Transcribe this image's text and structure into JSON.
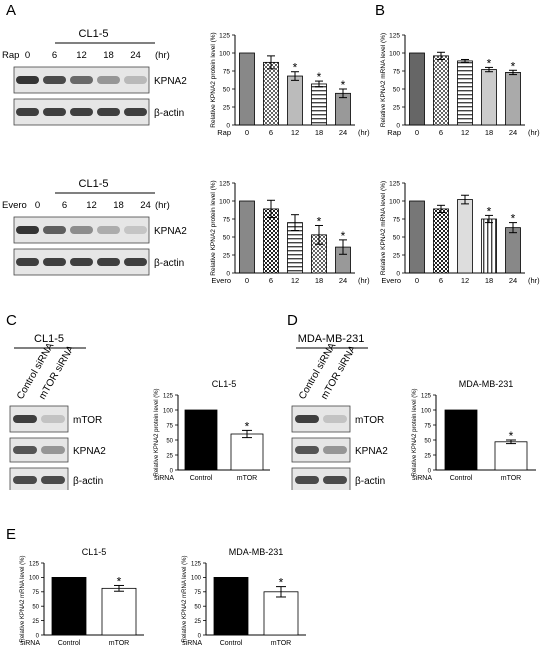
{
  "panels": {
    "A": "A",
    "B": "B",
    "C": "C",
    "D": "D",
    "E": "E"
  },
  "blots": [
    {
      "id": "blotA1",
      "cell": "CL1-5",
      "drug": "Rap",
      "times": [
        "0",
        "6",
        "12",
        "18",
        "24"
      ],
      "unit": "(hr)",
      "labels": [
        "KPNA2",
        "β-actin"
      ],
      "kpna2": [
        0.95,
        0.85,
        0.7,
        0.45,
        0.2
      ]
    },
    {
      "id": "blotA2",
      "cell": "CL1-5",
      "drug": "Evero",
      "times": [
        "0",
        "6",
        "12",
        "18",
        "24"
      ],
      "unit": "(hr)",
      "labels": [
        "KPNA2",
        "β-actin"
      ],
      "kpna2": [
        0.95,
        0.75,
        0.5,
        0.3,
        0.1
      ]
    },
    {
      "id": "blotC",
      "cell": "CL1-5",
      "lanes": [
        "Control siRNA",
        "mTOR siRNA"
      ],
      "labels": [
        "mTOR",
        "KPNA2",
        "β-actin"
      ]
    },
    {
      "id": "blotD",
      "cell": "MDA-MB-231",
      "lanes": [
        "Control siRNA",
        "mTOR siRNA"
      ],
      "labels": [
        "mTOR",
        "KPNA2",
        "β-actin"
      ]
    }
  ],
  "chart_data": [
    {
      "id": "chartA1",
      "type": "bar",
      "ylabel": "Relative KPNA2 protein level (%)",
      "xprefix": "Rap",
      "xunit": "(hr)",
      "categories": [
        "0",
        "6",
        "12",
        "18",
        "24"
      ],
      "values": [
        100,
        87,
        68,
        57,
        44
      ],
      "errors": [
        0,
        9,
        6,
        4,
        6
      ],
      "sig": [
        false,
        false,
        true,
        true,
        true
      ],
      "ylim": [
        0,
        125
      ],
      "yticks": [
        0,
        25,
        50,
        75,
        100,
        125
      ]
    },
    {
      "id": "chartB1",
      "type": "bar",
      "ylabel": "Relative KPNA2 mRNA level (%)",
      "xprefix": "Rap",
      "xunit": "(hr)",
      "categories": [
        "0",
        "6",
        "12",
        "18",
        "24"
      ],
      "values": [
        100,
        96,
        89,
        77,
        73
      ],
      "errors": [
        0,
        5,
        2,
        3,
        3
      ],
      "sig": [
        false,
        false,
        false,
        true,
        true
      ],
      "ylim": [
        0,
        125
      ],
      "yticks": [
        0,
        25,
        50,
        75,
        100,
        125
      ]
    },
    {
      "id": "chartA2",
      "type": "bar",
      "ylabel": "Relative KPNA2 protein level (%)",
      "xprefix": "Evero",
      "xunit": "(hr)",
      "categories": [
        "0",
        "6",
        "12",
        "18",
        "24"
      ],
      "values": [
        100,
        89,
        70,
        53,
        36
      ],
      "errors": [
        0,
        12,
        11,
        13,
        10
      ],
      "sig": [
        false,
        false,
        false,
        true,
        true
      ],
      "ylim": [
        0,
        125
      ],
      "yticks": [
        0,
        25,
        50,
        75,
        100,
        125
      ]
    },
    {
      "id": "chartB2",
      "type": "bar",
      "ylabel": "Relative KPNA2 mRNA level (%)",
      "xprefix": "Evero",
      "xunit": "(hr)",
      "categories": [
        "0",
        "6",
        "12",
        "18",
        "24"
      ],
      "values": [
        100,
        89,
        102,
        75,
        63
      ],
      "errors": [
        0,
        5,
        6,
        5,
        7
      ],
      "sig": [
        false,
        false,
        false,
        true,
        true
      ],
      "ylim": [
        0,
        125
      ],
      "yticks": [
        0,
        25,
        50,
        75,
        100,
        125
      ]
    },
    {
      "id": "chartC",
      "type": "bar",
      "title": "CL1-5",
      "ylabel": "Relative KPNA2 protein level (%)",
      "xprefix": "siRNA",
      "categories": [
        "Control",
        "mTOR"
      ],
      "values": [
        100,
        60
      ],
      "errors": [
        0,
        6
      ],
      "sig": [
        false,
        true
      ],
      "ylim": [
        0,
        125
      ],
      "yticks": [
        0,
        25,
        50,
        75,
        100,
        125
      ]
    },
    {
      "id": "chartD",
      "type": "bar",
      "title": "MDA-MB-231",
      "ylabel": "Relative KPNA2 protein level (%)",
      "xprefix": "siRNA",
      "categories": [
        "Control",
        "mTOR"
      ],
      "values": [
        100,
        47
      ],
      "errors": [
        0,
        3
      ],
      "sig": [
        false,
        true
      ],
      "ylim": [
        0,
        125
      ],
      "yticks": [
        0,
        25,
        50,
        75,
        100,
        125
      ]
    },
    {
      "id": "chartE1",
      "type": "bar",
      "title": "CL1-5",
      "ylabel": "Relative KPNA2 mRNA level (%)",
      "xprefix": "siRNA",
      "categories": [
        "Control",
        "mTOR"
      ],
      "values": [
        100,
        81
      ],
      "errors": [
        0,
        5
      ],
      "sig": [
        false,
        true
      ],
      "ylim": [
        0,
        125
      ],
      "yticks": [
        0,
        25,
        50,
        75,
        100,
        125
      ]
    },
    {
      "id": "chartE2",
      "type": "bar",
      "title": "MDA-MB-231",
      "ylabel": "Relative KPNA2 mRNA level (%)",
      "xprefix": "siRNA",
      "categories": [
        "Control",
        "mTOR"
      ],
      "values": [
        100,
        75
      ],
      "errors": [
        0,
        9
      ],
      "sig": [
        false,
        true
      ],
      "ylim": [
        0,
        125
      ],
      "yticks": [
        0,
        25,
        50,
        75,
        100,
        125
      ]
    }
  ]
}
